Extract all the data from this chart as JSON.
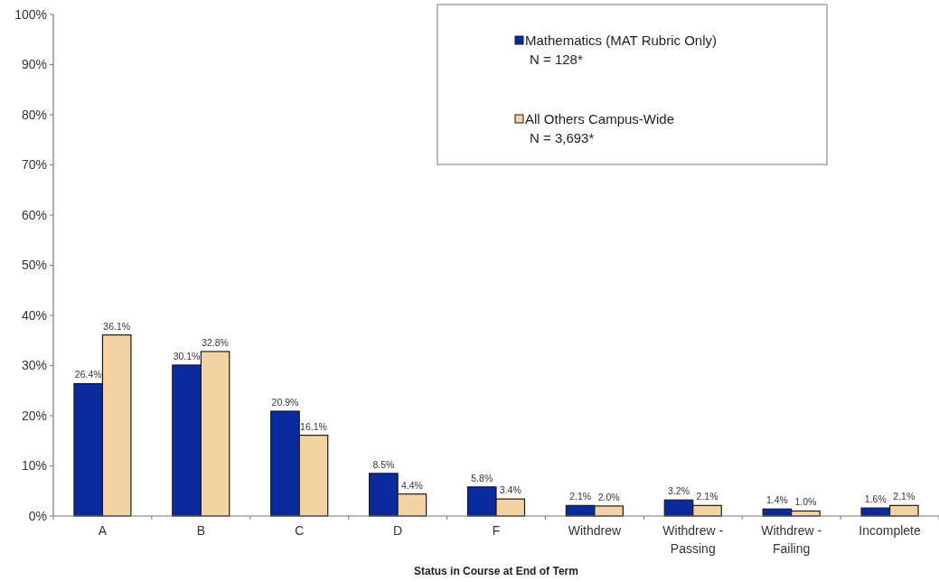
{
  "chart_data": {
    "type": "bar",
    "xlabel": "Status in Course at End of Term",
    "categories": [
      "A",
      "B",
      "C",
      "D",
      "F",
      "Withdrew",
      "Withdrew - Passing",
      "Withdrew - Failing",
      "Incomplete"
    ],
    "series": [
      {
        "name": "Mathematics (MAT Rubric Only)\nN = 128*",
        "color": "#0b2a9e",
        "values": [
          26.4,
          30.1,
          20.9,
          8.5,
          5.8,
          2.1,
          3.2,
          1.4,
          1.6
        ],
        "value_labels": [
          "26.4%",
          "30.1%",
          "20.9%",
          "8.5%",
          "5.8%",
          "2.1%",
          "3.2%",
          "1.4%",
          "1.6%"
        ]
      },
      {
        "name": "All Others Campus-Wide\nN = 3,693*",
        "color": "#f3d3a4",
        "values": [
          36.1,
          32.8,
          16.1,
          4.4,
          3.4,
          2.0,
          2.1,
          1.0,
          2.1
        ],
        "value_labels": [
          "36.1%",
          "32.8%",
          "16.1%",
          "4.4%",
          "3.4%",
          "2.0%",
          "2.1%",
          "1.0%",
          "2.1%"
        ]
      }
    ],
    "ylim": [
      0,
      100
    ],
    "yticks": [
      {
        "value": 0,
        "label": "0%"
      },
      {
        "value": 10,
        "label": "10%"
      },
      {
        "value": 20,
        "label": "20%"
      },
      {
        "value": 30,
        "label": "30%"
      },
      {
        "value": 40,
        "label": "40%"
      },
      {
        "value": 50,
        "label": "50%"
      },
      {
        "value": 60,
        "label": "60%"
      },
      {
        "value": 70,
        "label": "70%"
      },
      {
        "value": 80,
        "label": "80%"
      },
      {
        "value": 90,
        "label": "90%"
      },
      {
        "value": 100,
        "label": "100%"
      }
    ],
    "legend": "top right"
  }
}
